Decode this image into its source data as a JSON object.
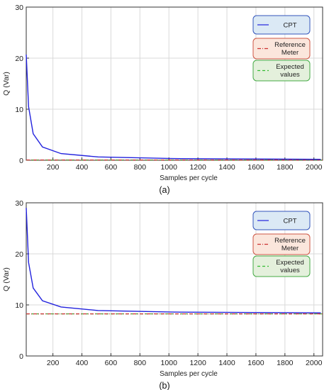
{
  "chart_data": [
    {
      "type": "line",
      "panel_label": "(a)",
      "xlabel": "Samples per cycle",
      "ylabel": "Q (Var)",
      "xlim": [
        16,
        2060
      ],
      "ylim": [
        0,
        30
      ],
      "xticks": [
        200,
        400,
        600,
        800,
        1000,
        1200,
        1400,
        1600,
        1800,
        2000
      ],
      "yticks": [
        0,
        10,
        20,
        30
      ],
      "grid": true,
      "legend_position": "top-right",
      "series": [
        {
          "name": "CPT",
          "color": "#2222dd",
          "style": "solid",
          "legend_fill": "#dbe9f5",
          "legend_stroke": "#3355bb",
          "x": [
            16,
            32,
            64,
            128,
            256,
            512,
            1024,
            2048
          ],
          "y": [
            20.7,
            10.5,
            5.2,
            2.6,
            1.3,
            0.65,
            0.33,
            0.18
          ]
        },
        {
          "name": "Reference Meter",
          "color": "#cc3333",
          "style": "dashdot",
          "legend_fill": "#fbe6dc",
          "legend_stroke": "#cc5544",
          "x": [
            16,
            2060
          ],
          "y": [
            0.05,
            0.05
          ]
        },
        {
          "name": "Expected values",
          "color": "#33bb33",
          "style": "dashed",
          "legend_fill": "#e4f0dc",
          "legend_stroke": "#44aa44",
          "x": [
            16,
            2060
          ],
          "y": [
            0.05,
            0.05
          ]
        }
      ]
    },
    {
      "type": "line",
      "panel_label": "(b)",
      "xlabel": "Samples per cycle",
      "ylabel": "Q (Var)",
      "xlim": [
        16,
        2060
      ],
      "ylim": [
        0,
        30
      ],
      "xticks": [
        200,
        400,
        600,
        800,
        1000,
        1200,
        1400,
        1600,
        1800,
        2000
      ],
      "yticks": [
        0,
        10,
        20,
        30
      ],
      "grid": true,
      "legend_position": "top-right",
      "series": [
        {
          "name": "CPT",
          "color": "#2222dd",
          "style": "solid",
          "legend_fill": "#dbe9f5",
          "legend_stroke": "#3355bb",
          "x": [
            16,
            32,
            64,
            128,
            256,
            512,
            1024,
            2048
          ],
          "y": [
            29.0,
            18.3,
            13.3,
            10.8,
            9.6,
            8.9,
            8.6,
            8.45
          ]
        },
        {
          "name": "Reference Meter",
          "color": "#cc3333",
          "style": "dashdot",
          "legend_fill": "#fbe6dc",
          "legend_stroke": "#cc5544",
          "x": [
            16,
            2060
          ],
          "y": [
            8.25,
            8.25
          ]
        },
        {
          "name": "Expected values",
          "color": "#33bb33",
          "style": "dashed",
          "legend_fill": "#e4f0dc",
          "legend_stroke": "#44aa44",
          "x": [
            16,
            2060
          ],
          "y": [
            8.25,
            8.25
          ]
        }
      ]
    }
  ]
}
